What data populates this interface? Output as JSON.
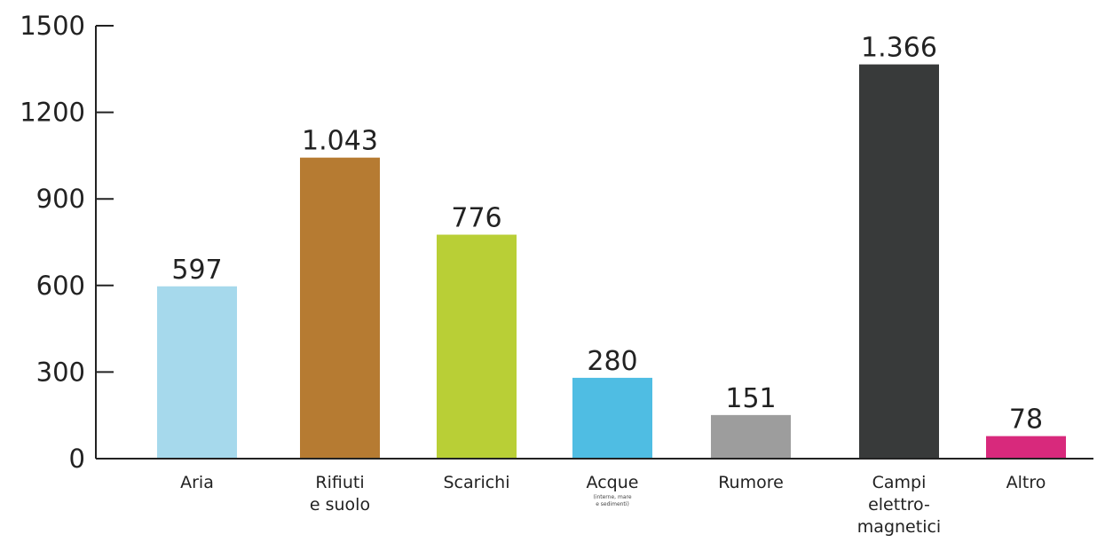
{
  "chart_data": {
    "type": "bar",
    "title": "",
    "xlabel": "",
    "ylabel": "",
    "ylim": [
      0,
      1500
    ],
    "yticks": [
      0,
      300,
      600,
      900,
      1200,
      1500
    ],
    "grid": false,
    "legend": "none",
    "categories": [
      {
        "label_lines": [
          "Aria"
        ],
        "note_lines": []
      },
      {
        "label_lines": [
          "Rifiuti",
          "e suolo"
        ],
        "note_lines": []
      },
      {
        "label_lines": [
          "Scarichi"
        ],
        "note_lines": []
      },
      {
        "label_lines": [
          "Acque"
        ],
        "note_lines": [
          "(interne, mare",
          "e sedimenti)"
        ]
      },
      {
        "label_lines": [
          "Rumore"
        ],
        "note_lines": []
      },
      {
        "label_lines": [
          "Campi",
          "elettro-",
          "magnetici"
        ],
        "note_lines": []
      },
      {
        "label_lines": [
          "Altro"
        ],
        "note_lines": []
      }
    ],
    "values": [
      597,
      1043,
      776,
      280,
      151,
      1366,
      78
    ],
    "value_labels": [
      "597",
      "1.043",
      "776",
      "280",
      "151",
      "1.366",
      "78"
    ],
    "colors": [
      "#a6d9ec",
      "#b67b32",
      "#b9cf36",
      "#4fbde3",
      "#9d9d9d",
      "#383a3a",
      "#d8297c"
    ],
    "axis_color": "#222222"
  }
}
